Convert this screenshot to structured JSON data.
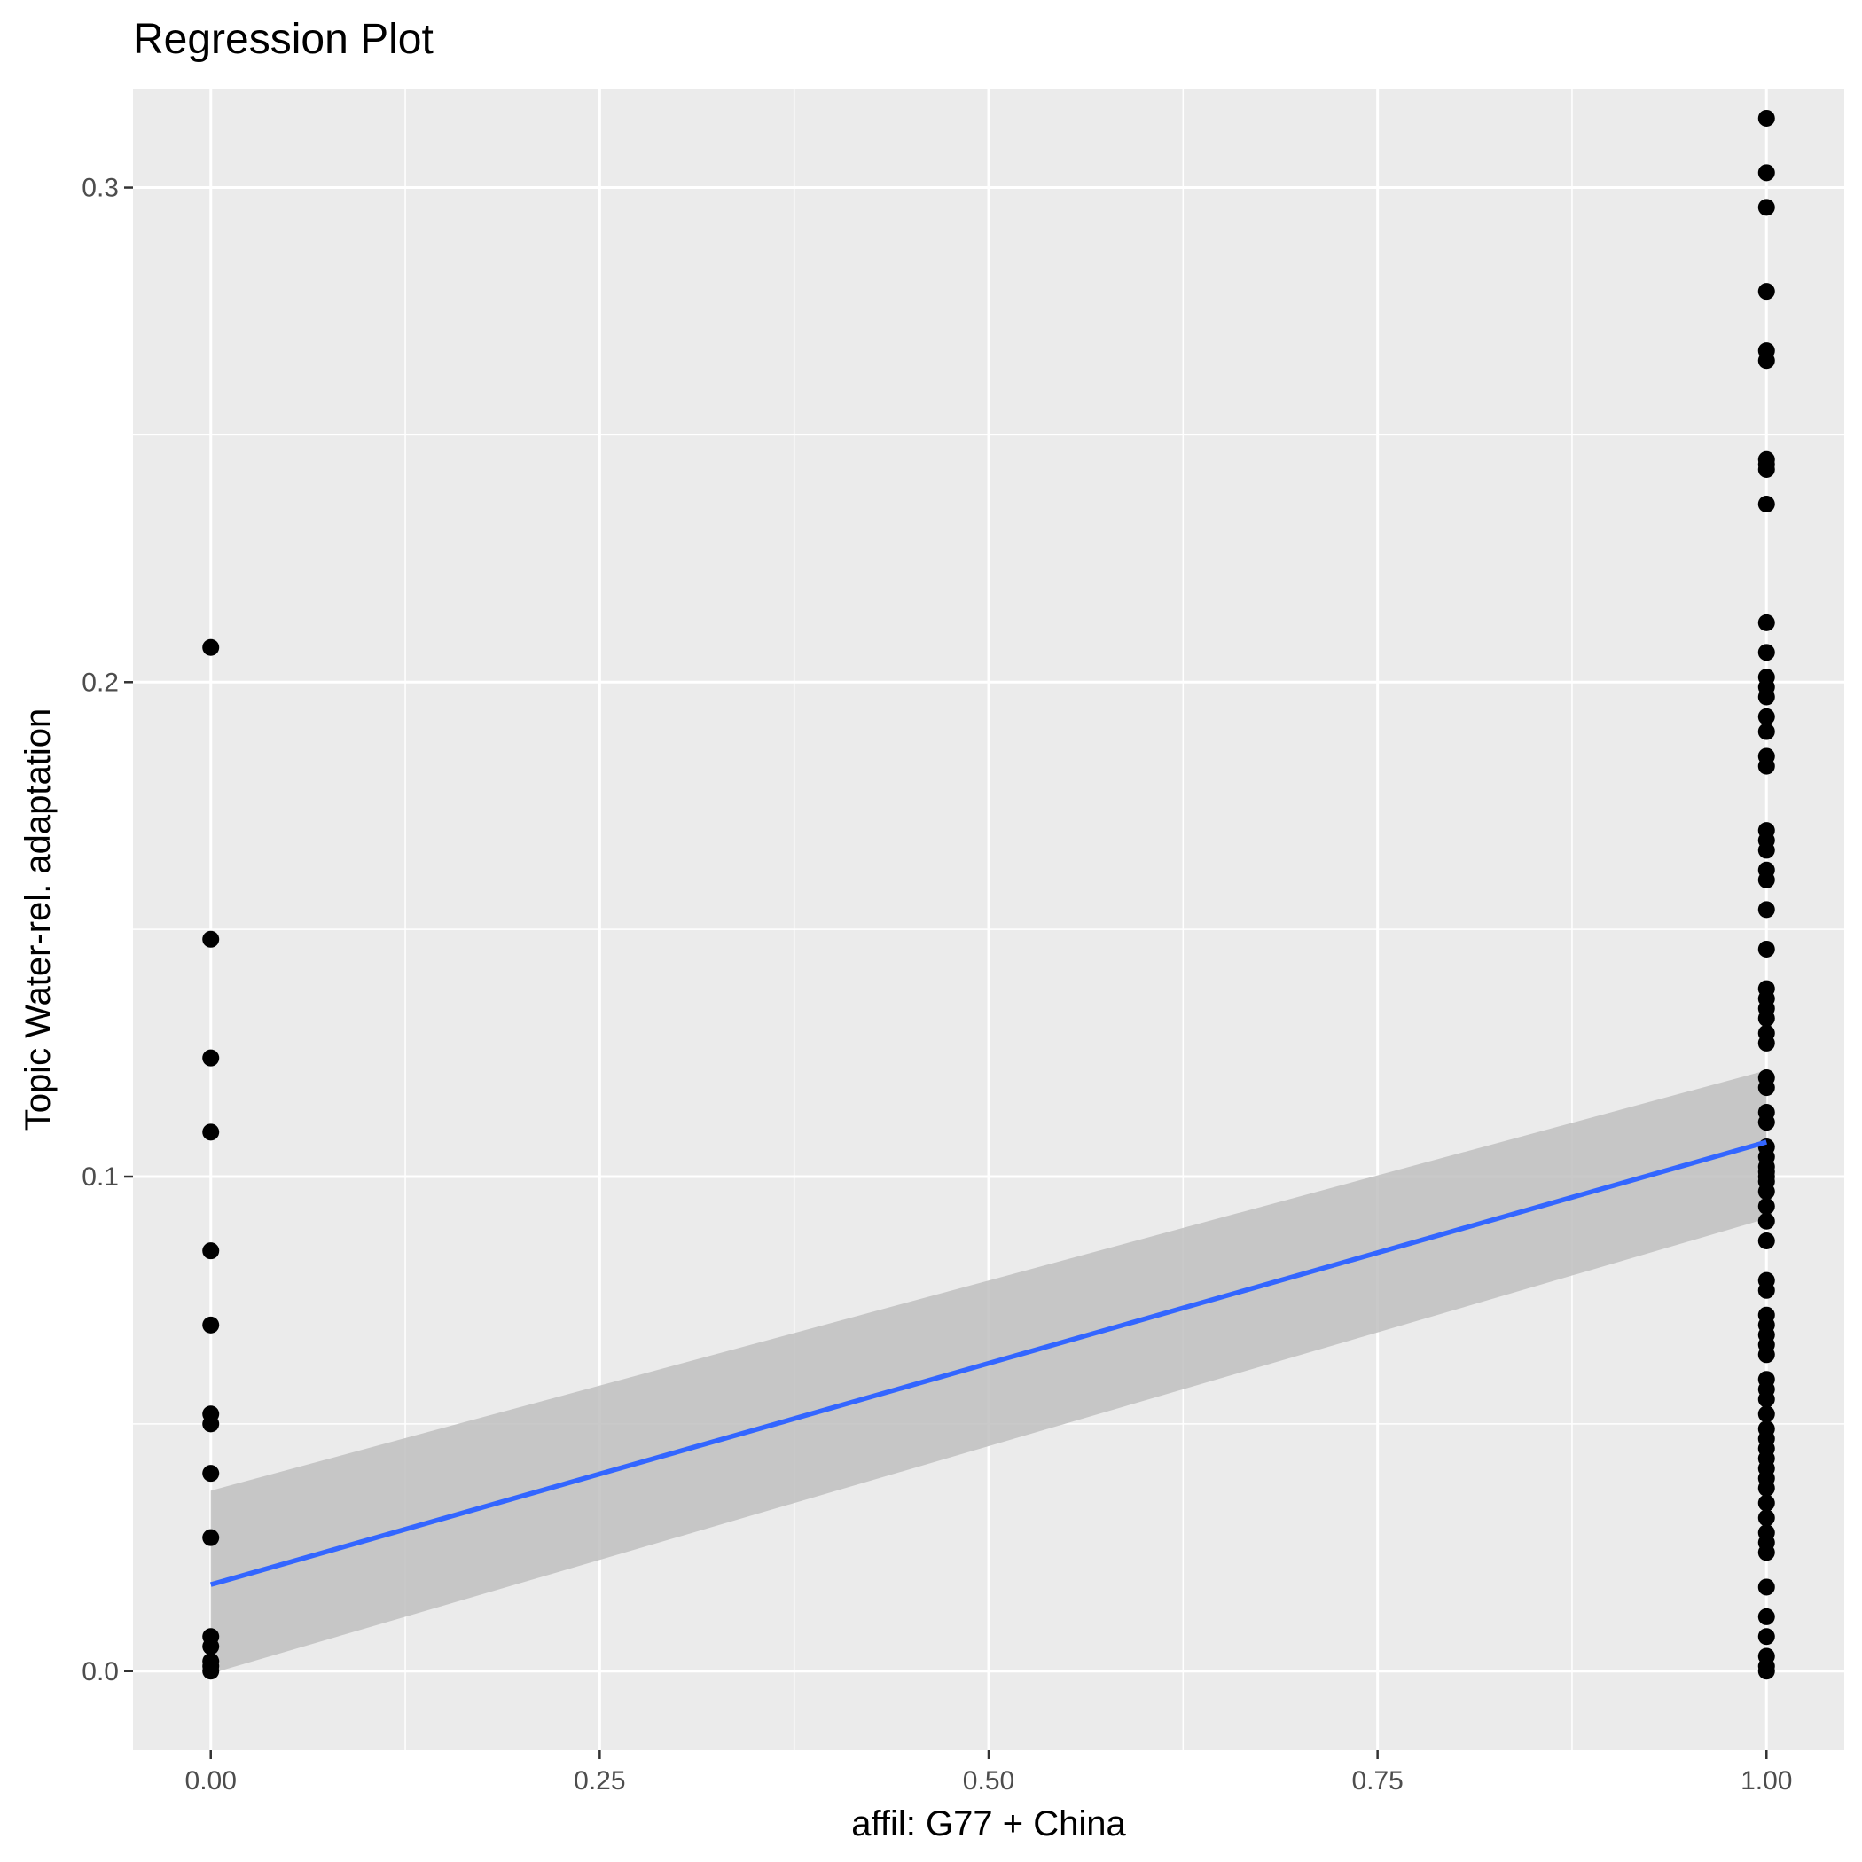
{
  "chart_data": {
    "type": "scatter",
    "title": "Regression Plot",
    "xlabel": "affil: G77 + China",
    "ylabel": "Topic Water-rel. adaptation",
    "xlim": [
      -0.05,
      1.05
    ],
    "ylim": [
      -0.016,
      0.32
    ],
    "x_ticks": [
      0.0,
      0.25,
      0.5,
      0.75,
      1.0
    ],
    "x_tick_labels": [
      "0.00",
      "0.25",
      "0.50",
      "0.75",
      "1.00"
    ],
    "y_ticks": [
      0.0,
      0.1,
      0.2,
      0.3
    ],
    "y_tick_labels": [
      "0.0",
      "0.1",
      "0.2",
      "0.3"
    ],
    "grid": true,
    "colors": {
      "panel": "#ebebeb",
      "grid": "#ffffff",
      "points": "#000000",
      "line": "#3366ff",
      "ribbon": "#c0c0c0"
    },
    "points": [
      {
        "x": 0,
        "y": 0.207
      },
      {
        "x": 0,
        "y": 0.148
      },
      {
        "x": 0,
        "y": 0.124
      },
      {
        "x": 0,
        "y": 0.109
      },
      {
        "x": 0,
        "y": 0.085
      },
      {
        "x": 0,
        "y": 0.07
      },
      {
        "x": 0,
        "y": 0.052
      },
      {
        "x": 0,
        "y": 0.05
      },
      {
        "x": 0,
        "y": 0.04
      },
      {
        "x": 0,
        "y": 0.027
      },
      {
        "x": 0,
        "y": 0.007
      },
      {
        "x": 0,
        "y": 0.005
      },
      {
        "x": 0,
        "y": 0.002
      },
      {
        "x": 0,
        "y": 0.001
      },
      {
        "x": 0,
        "y": 0.0
      },
      {
        "x": 1,
        "y": 0.314
      },
      {
        "x": 1,
        "y": 0.303
      },
      {
        "x": 1,
        "y": 0.296
      },
      {
        "x": 1,
        "y": 0.279
      },
      {
        "x": 1,
        "y": 0.267
      },
      {
        "x": 1,
        "y": 0.265
      },
      {
        "x": 1,
        "y": 0.245
      },
      {
        "x": 1,
        "y": 0.244
      },
      {
        "x": 1,
        "y": 0.243
      },
      {
        "x": 1,
        "y": 0.236
      },
      {
        "x": 1,
        "y": 0.212
      },
      {
        "x": 1,
        "y": 0.206
      },
      {
        "x": 1,
        "y": 0.201
      },
      {
        "x": 1,
        "y": 0.199
      },
      {
        "x": 1,
        "y": 0.197
      },
      {
        "x": 1,
        "y": 0.193
      },
      {
        "x": 1,
        "y": 0.19
      },
      {
        "x": 1,
        "y": 0.185
      },
      {
        "x": 1,
        "y": 0.183
      },
      {
        "x": 1,
        "y": 0.17
      },
      {
        "x": 1,
        "y": 0.168
      },
      {
        "x": 1,
        "y": 0.166
      },
      {
        "x": 1,
        "y": 0.162
      },
      {
        "x": 1,
        "y": 0.16
      },
      {
        "x": 1,
        "y": 0.154
      },
      {
        "x": 1,
        "y": 0.146
      },
      {
        "x": 1,
        "y": 0.138
      },
      {
        "x": 1,
        "y": 0.136
      },
      {
        "x": 1,
        "y": 0.134
      },
      {
        "x": 1,
        "y": 0.132
      },
      {
        "x": 1,
        "y": 0.129
      },
      {
        "x": 1,
        "y": 0.127
      },
      {
        "x": 1,
        "y": 0.12
      },
      {
        "x": 1,
        "y": 0.118
      },
      {
        "x": 1,
        "y": 0.113
      },
      {
        "x": 1,
        "y": 0.111
      },
      {
        "x": 1,
        "y": 0.106
      },
      {
        "x": 1,
        "y": 0.104
      },
      {
        "x": 1,
        "y": 0.102
      },
      {
        "x": 1,
        "y": 0.101
      },
      {
        "x": 1,
        "y": 0.1
      },
      {
        "x": 1,
        "y": 0.099
      },
      {
        "x": 1,
        "y": 0.097
      },
      {
        "x": 1,
        "y": 0.094
      },
      {
        "x": 1,
        "y": 0.091
      },
      {
        "x": 1,
        "y": 0.087
      },
      {
        "x": 1,
        "y": 0.079
      },
      {
        "x": 1,
        "y": 0.077
      },
      {
        "x": 1,
        "y": 0.072
      },
      {
        "x": 1,
        "y": 0.07
      },
      {
        "x": 1,
        "y": 0.068
      },
      {
        "x": 1,
        "y": 0.066
      },
      {
        "x": 1,
        "y": 0.064
      },
      {
        "x": 1,
        "y": 0.059
      },
      {
        "x": 1,
        "y": 0.057
      },
      {
        "x": 1,
        "y": 0.055
      },
      {
        "x": 1,
        "y": 0.052
      },
      {
        "x": 1,
        "y": 0.049
      },
      {
        "x": 1,
        "y": 0.047
      },
      {
        "x": 1,
        "y": 0.045
      },
      {
        "x": 1,
        "y": 0.043
      },
      {
        "x": 1,
        "y": 0.041
      },
      {
        "x": 1,
        "y": 0.039
      },
      {
        "x": 1,
        "y": 0.037
      },
      {
        "x": 1,
        "y": 0.034
      },
      {
        "x": 1,
        "y": 0.031
      },
      {
        "x": 1,
        "y": 0.028
      },
      {
        "x": 1,
        "y": 0.026
      },
      {
        "x": 1,
        "y": 0.024
      },
      {
        "x": 1,
        "y": 0.017
      },
      {
        "x": 1,
        "y": 0.011
      },
      {
        "x": 1,
        "y": 0.007
      },
      {
        "x": 1,
        "y": 0.003
      },
      {
        "x": 1,
        "y": 0.001
      },
      {
        "x": 1,
        "y": 0.0
      }
    ],
    "regression": {
      "x": [
        0,
        1
      ],
      "y": [
        0.0175,
        0.107
      ],
      "ci_lower": [
        -0.0005,
        0.0915
      ],
      "ci_upper": [
        0.0365,
        0.1215
      ]
    }
  }
}
